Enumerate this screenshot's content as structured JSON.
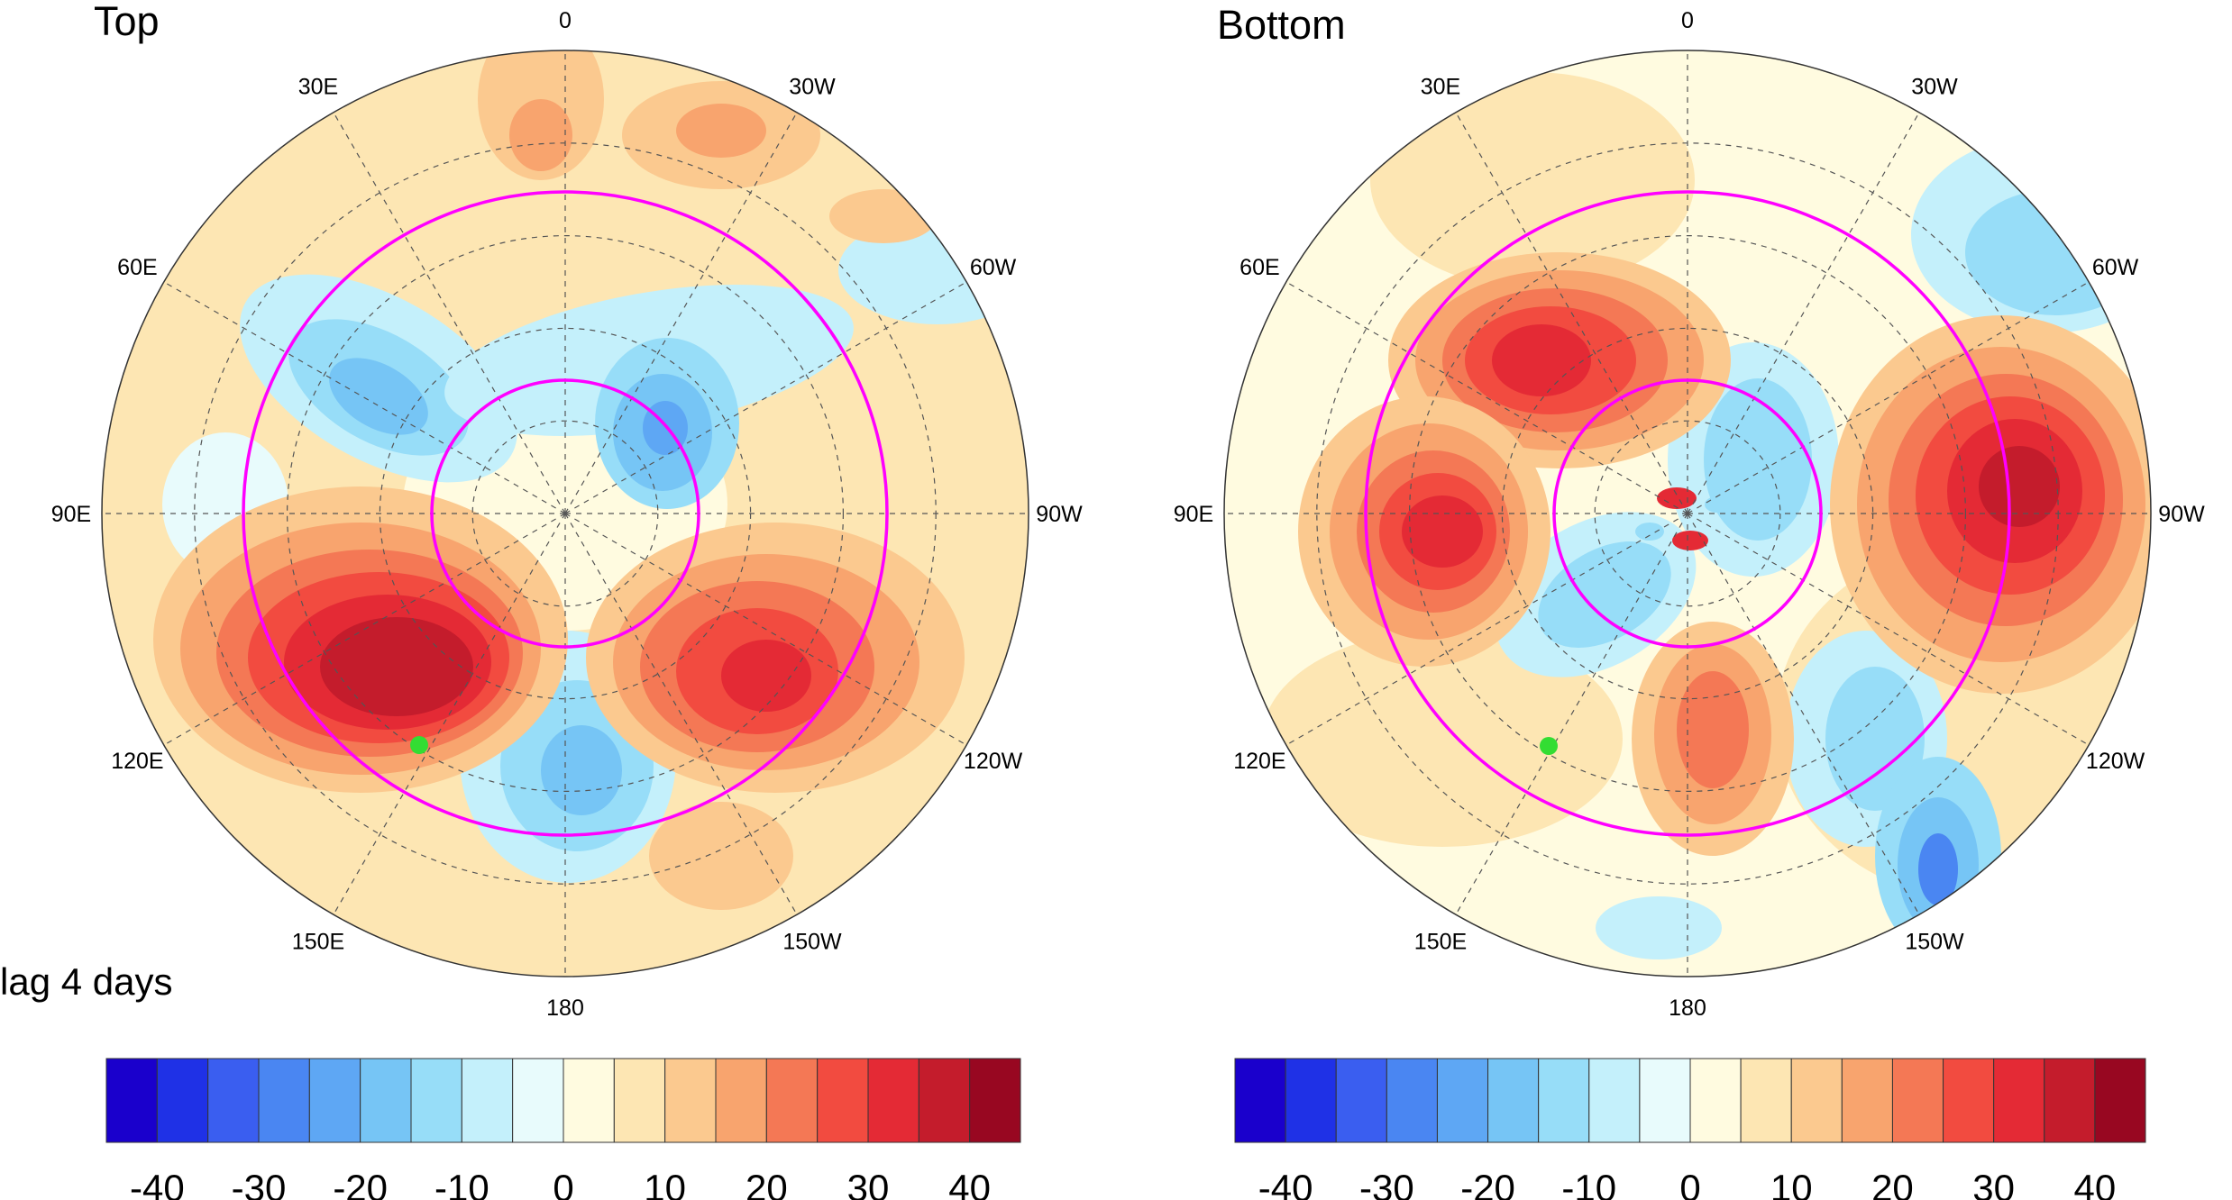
{
  "panels": [
    {
      "title": "Top",
      "longitude_labels": [
        "0",
        "30W",
        "60W",
        "90W",
        "120W",
        "150W",
        "180",
        "150E",
        "120E",
        "90E",
        "60E",
        "30E"
      ],
      "marker": {
        "lat": 38,
        "lon": "130E",
        "color": "#33dd33"
      },
      "reference_circles_lat": [
        60,
        80
      ],
      "reference_circle_color": "#ff00ff",
      "colorbar_ticks": [
        "-40",
        "-30",
        "-20",
        "-10",
        "0",
        "10",
        "20",
        "30",
        "40"
      ]
    },
    {
      "title": "Bottom",
      "longitude_labels": [
        "0",
        "30W",
        "60W",
        "90W",
        "120W",
        "150W",
        "180",
        "150E",
        "120E",
        "90E",
        "60E",
        "30E"
      ],
      "marker": {
        "lat": 40,
        "lon": "150E",
        "color": "#33dd33"
      },
      "reference_circles_lat": [
        60,
        80
      ],
      "reference_circle_color": "#ff00ff",
      "colorbar_ticks": [
        "-40",
        "-30",
        "-20",
        "-10",
        "0",
        "10",
        "20",
        "30",
        "40"
      ]
    }
  ],
  "lag_label": "lag 4 days",
  "colorbar": {
    "min": -45,
    "max": 45,
    "step": 5,
    "colors": [
      "#1a00cc",
      "#1f31e6",
      "#3a5ef0",
      "#4a86f2",
      "#5ea7f4",
      "#76c5f5",
      "#97ddf8",
      "#c4f0fb",
      "#e8fbfc",
      "#fffbe0",
      "#fde6b3",
      "#fbc98f",
      "#f8a46e",
      "#f47855",
      "#f24b40",
      "#e42a35",
      "#c41c2c",
      "#980721"
    ]
  }
}
